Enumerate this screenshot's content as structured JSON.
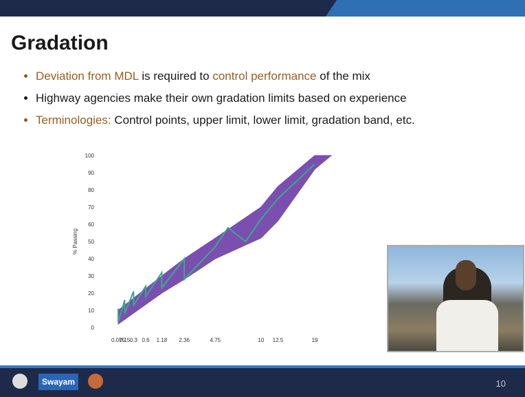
{
  "header": {
    "title": "Gradation"
  },
  "bullets": [
    [
      "Deviation from MDL",
      " is required to ",
      "control performance",
      " of the mix"
    ],
    [
      "Highway agencies make their own gradation limits based on experience"
    ],
    [
      "Terminologies:",
      " Control points, upper limit, lower limit, gradation band, etc."
    ]
  ],
  "chart_data": {
    "type": "line",
    "y_label": "% Passing",
    "xscale": "power",
    "xscale_exponent": 0.45,
    "xlim": [
      0.075,
      22.4
    ],
    "ylim": [
      0,
      100
    ],
    "xticks": [
      0.075,
      0.15,
      0.3,
      0.6,
      1.18,
      2.36,
      4.75,
      10,
      12.5,
      19
    ],
    "yticks": [
      0,
      10,
      20,
      30,
      40,
      50,
      60,
      70,
      80,
      90,
      100
    ],
    "band": {
      "color": "#7b4fb0",
      "x": [
        0.075,
        1.18,
        2.36,
        4.75,
        10,
        12.5,
        19,
        22.4
      ],
      "lower": [
        2,
        20,
        28,
        40,
        52,
        62,
        92,
        100
      ],
      "upper": [
        10,
        30,
        40,
        52,
        70,
        82,
        100,
        100
      ]
    },
    "line": {
      "color": "#3aa88c",
      "x": [
        0.075,
        0.075,
        0.15,
        0.15,
        0.3,
        0.3,
        0.6,
        0.6,
        1.18,
        1.18,
        2.36,
        2.36,
        4.75,
        6,
        8,
        10,
        12.5,
        19
      ],
      "values": [
        11,
        3,
        16,
        8,
        21,
        13,
        24,
        18,
        32,
        23,
        40,
        28,
        47,
        58,
        50,
        63,
        75,
        95
      ]
    }
  },
  "footer": {
    "logo_text": "Swayam",
    "page": "10"
  }
}
